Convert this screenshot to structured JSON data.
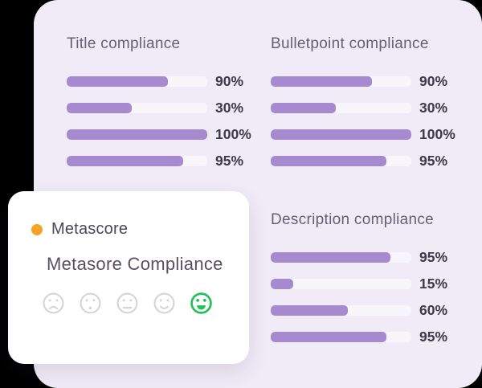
{
  "theme": {
    "page_bg": "#000000",
    "panel_bg": "#f0ebf7",
    "card_bg": "#ffffff",
    "bar_fill": "#a68ad0",
    "bar_track": "#f8f5fb",
    "title_color": "#665f73",
    "value_color": "#3e3849",
    "legend_text": "#4b4757",
    "heading_color": "#575064",
    "orange_dot": "#f7a426",
    "face_gray": "#d5d4da",
    "face_green": "#24c05a"
  },
  "chart_data": [
    {
      "type": "bar",
      "title": "Title compliance",
      "unit": "%",
      "values": [
        90,
        30,
        100,
        95
      ],
      "labels": [
        "90%",
        "30%",
        "100%",
        "95%"
      ],
      "xlim": [
        0,
        100
      ],
      "orientation": "horizontal",
      "grid": false,
      "visual_fill_pct": [
        72,
        46,
        100,
        83
      ]
    },
    {
      "type": "bar",
      "title": "Bulletpoint compliance",
      "unit": "%",
      "values": [
        90,
        30,
        100,
        95
      ],
      "labels": [
        "90%",
        "30%",
        "100%",
        "95%"
      ],
      "xlim": [
        0,
        100
      ],
      "orientation": "horizontal",
      "grid": false,
      "visual_fill_pct": [
        72,
        46,
        100,
        82
      ]
    },
    {
      "type": "bar",
      "title": "Description compliance",
      "unit": "%",
      "values": [
        95,
        15,
        60,
        95
      ],
      "labels": [
        "95%",
        "15%",
        "60%",
        "95%"
      ],
      "xlim": [
        0,
        100
      ],
      "orientation": "horizontal",
      "grid": false,
      "visual_fill_pct": [
        85,
        16,
        55,
        82
      ]
    }
  ],
  "card": {
    "legend": {
      "label": "Metascore",
      "dot_color": "#f7a426"
    },
    "heading": "Metasore Compliance",
    "rating": {
      "scale": 5,
      "selected_index": 4,
      "selected_color": "#24c05a",
      "unselected_color": "#d5d4da",
      "faces": [
        {
          "name": "sad-face-icon",
          "mood": "frown",
          "selected": false
        },
        {
          "name": "surprised-face-icon",
          "mood": "dot",
          "selected": false
        },
        {
          "name": "neutral-face-icon",
          "mood": "flat",
          "selected": false
        },
        {
          "name": "slight-smile-face-icon",
          "mood": "smile",
          "selected": false
        },
        {
          "name": "happy-face-icon",
          "mood": "grin",
          "selected": true
        }
      ]
    }
  }
}
